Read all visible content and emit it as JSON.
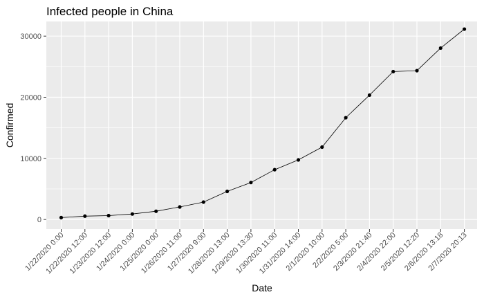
{
  "chart_data": {
    "type": "line",
    "title": "Infected people in China",
    "xlabel": "Date",
    "ylabel": "Confirmed",
    "categories": [
      "1/22/2020 0:00",
      "1/22/2020 12:00",
      "1/23/2020 12:00",
      "1/24/2020 0:00",
      "1/25/2020 0:00",
      "1/26/2020 11:00",
      "1/27/2020 9:00",
      "1/28/2020 13:00",
      "1/29/2020 13:30",
      "1/30/2020 11:00",
      "1/31/2020 14:00",
      "2/1/2020 10:00",
      "2/2/2020 5:00",
      "2/3/2020 21:40",
      "2/4/2020 22:00",
      "2/5/2020 12:20",
      "2/6/2020 13:18",
      "2/7/2020 20:13"
    ],
    "series": [
      {
        "values": [
          310,
          550,
          640,
          900,
          1350,
          2050,
          2850,
          4600,
          6050,
          8150,
          9750,
          11850,
          16650,
          20350,
          24200,
          24350,
          28050,
          31150
        ]
      }
    ],
    "ylim": [
      -1570,
      32400
    ],
    "yticks": [
      0,
      10000,
      20000,
      30000
    ],
    "ytick_labels": [
      "0",
      "10000",
      "20000",
      "30000"
    ],
    "grid": true,
    "colors": {
      "panel": "#ebebeb",
      "grid": "#ffffff",
      "line": "#000000",
      "point": "#000000",
      "tick_text": "#4d4d4d"
    }
  }
}
